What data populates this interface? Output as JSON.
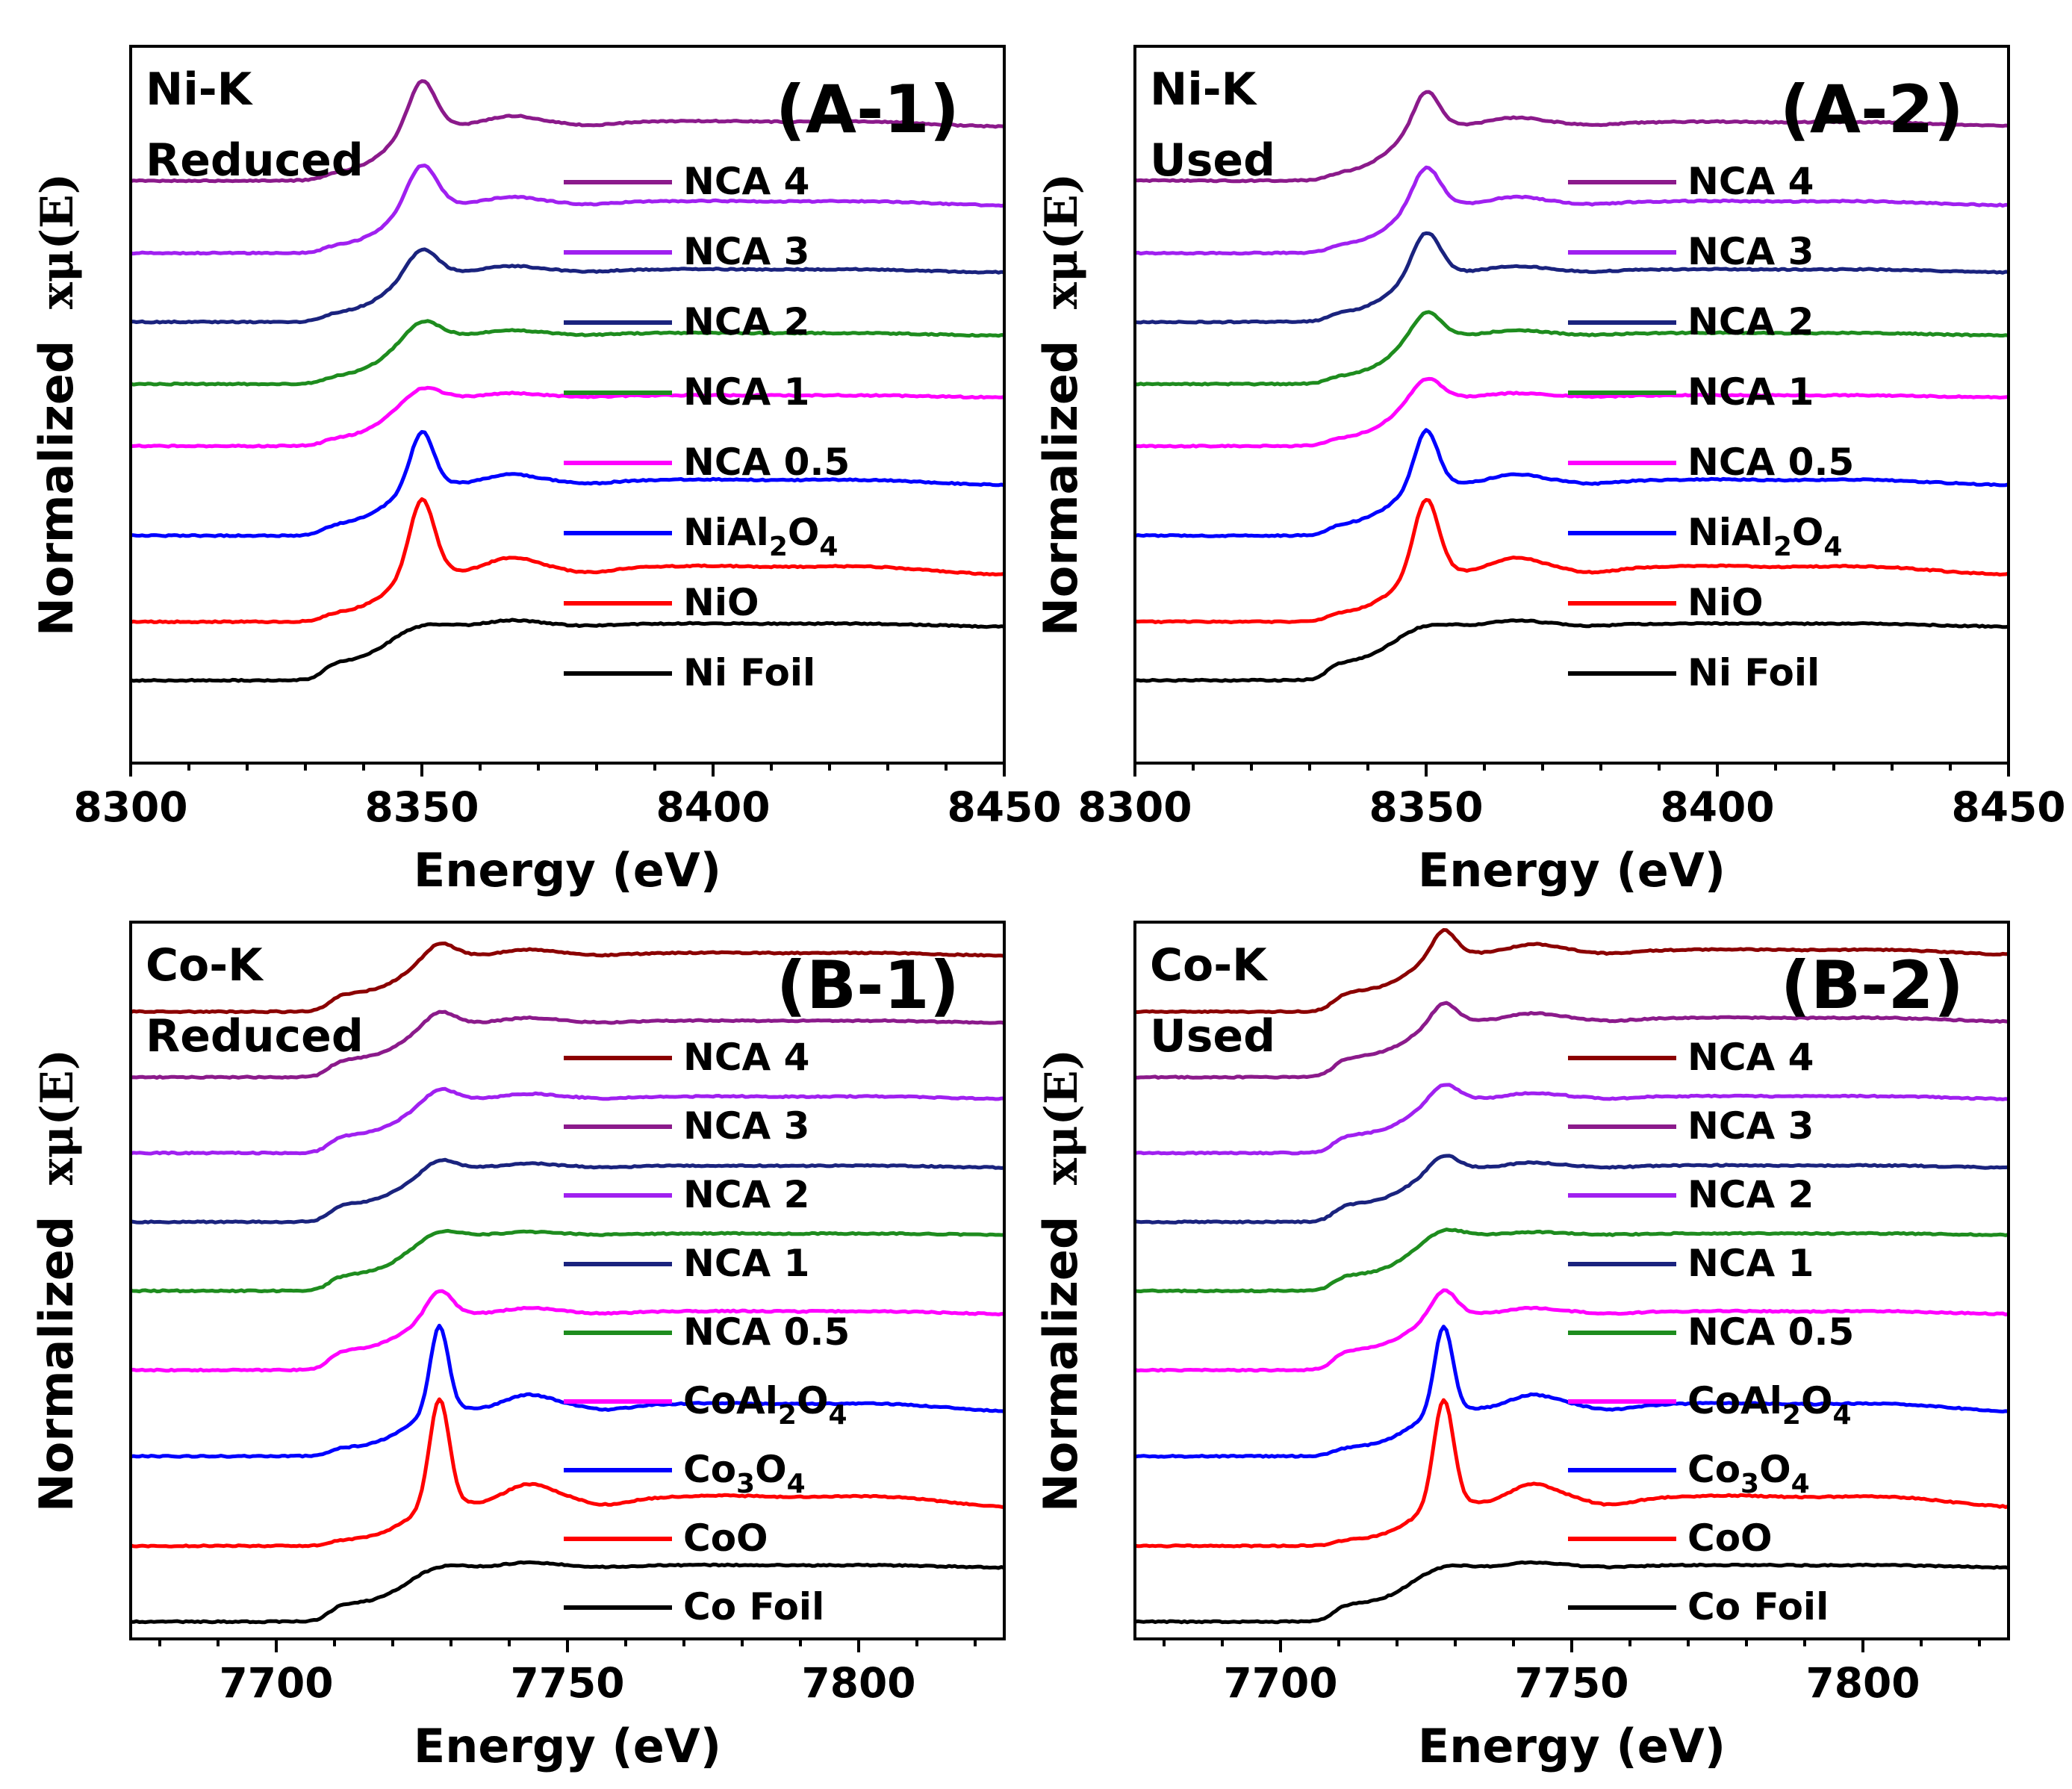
{
  "figure_caption": "",
  "chart_data": [
    {
      "id": "A1",
      "type": "line",
      "panel_tag": "(A-1)",
      "edge": "Ni-K",
      "condition": "Reduced",
      "xlabel": "Energy (eV)",
      "ylabel_word": "Normalized",
      "ylabel_symbol": "xμ(E)",
      "xlim": [
        8300,
        8450
      ],
      "xticks": [
        8300,
        8350,
        8400,
        8450
      ],
      "edge_energy": 8333,
      "white_line": 8350,
      "series": [
        {
          "name": "NCA 4",
          "color": "#8b1a8b",
          "offset": 7.45,
          "peak": 0.7,
          "width": 3.2,
          "edge_step": 0.72,
          "pre": 0.1,
          "osc": 0.1
        },
        {
          "name": "NCA 3",
          "color": "#a020f0",
          "offset": 6.4,
          "peak": 0.62,
          "width": 3.5,
          "edge_step": 0.62,
          "pre": 0.1,
          "osc": 0.08
        },
        {
          "name": "NCA 2",
          "color": "#1a237e",
          "offset": 5.4,
          "peak": 0.38,
          "width": 3.5,
          "edge_step": 0.62,
          "pre": 0.12,
          "osc": 0.06
        },
        {
          "name": "NCA 1",
          "color": "#1e8c1e",
          "offset": 4.5,
          "peak": 0.25,
          "width": 4.0,
          "edge_step": 0.62,
          "pre": 0.1,
          "osc": 0.05
        },
        {
          "name": "NCA 0.5",
          "color": "#ff00ff",
          "offset": 3.6,
          "peak": 0.18,
          "width": 4.0,
          "edge_step": 0.62,
          "pre": 0.1,
          "osc": 0.04
        },
        {
          "name": "NiAl2O4",
          "color": "#0000ff",
          "offset": 2.3,
          "peak": 0.8,
          "width": 2.8,
          "edge_step": 0.62,
          "pre": 0.15,
          "osc": 0.1
        },
        {
          "name": "NiO",
          "color": "#ff0000",
          "offset": 1.05,
          "peak": 1.1,
          "width": 3.0,
          "edge_step": 0.62,
          "pre": 0.12,
          "osc": 0.16
        },
        {
          "name": "Ni Foil",
          "color": "#000000",
          "offset": 0.2,
          "peak": 0.05,
          "width": 5.0,
          "edge_step": 0.55,
          "pre": 0.25,
          "osc": 0.06
        }
      ]
    },
    {
      "id": "A2",
      "type": "line",
      "panel_tag": "(A-2)",
      "edge": "Ni-K",
      "condition": "Used",
      "xlabel": "Energy (eV)",
      "ylabel_word": "Normalized",
      "ylabel_symbol": "xμ(E)",
      "xlim": [
        8300,
        8450
      ],
      "xticks": [
        8300,
        8350,
        8400,
        8450
      ],
      "edge_energy": 8333,
      "white_line": 8350,
      "series": [
        {
          "name": "NCA 4",
          "color": "#8b1a8b",
          "offset": 7.45,
          "peak": 0.55,
          "width": 3.0,
          "edge_step": 0.72,
          "pre": 0.1,
          "osc": 0.08
        },
        {
          "name": "NCA 3",
          "color": "#a020f0",
          "offset": 6.4,
          "peak": 0.58,
          "width": 3.3,
          "edge_step": 0.62,
          "pre": 0.1,
          "osc": 0.08
        },
        {
          "name": "NCA 2",
          "color": "#1a237e",
          "offset": 5.4,
          "peak": 0.62,
          "width": 3.3,
          "edge_step": 0.62,
          "pre": 0.12,
          "osc": 0.06
        },
        {
          "name": "NCA 1",
          "color": "#1e8c1e",
          "offset": 4.5,
          "peak": 0.38,
          "width": 3.5,
          "edge_step": 0.62,
          "pre": 0.1,
          "osc": 0.05
        },
        {
          "name": "NCA 0.5",
          "color": "#ff00ff",
          "offset": 3.6,
          "peak": 0.32,
          "width": 3.5,
          "edge_step": 0.62,
          "pre": 0.1,
          "osc": 0.04
        },
        {
          "name": "NiAl2O4",
          "color": "#0000ff",
          "offset": 2.3,
          "peak": 0.82,
          "width": 2.8,
          "edge_step": 0.62,
          "pre": 0.15,
          "osc": 0.1
        },
        {
          "name": "NiO",
          "color": "#ff0000",
          "offset": 1.05,
          "peak": 1.1,
          "width": 3.0,
          "edge_step": 0.62,
          "pre": 0.12,
          "osc": 0.16
        },
        {
          "name": "Ni Foil",
          "color": "#000000",
          "offset": 0.2,
          "peak": 0.05,
          "width": 5.0,
          "edge_step": 0.55,
          "pre": 0.25,
          "osc": 0.06
        }
      ]
    },
    {
      "id": "B1",
      "type": "line",
      "panel_tag": "(B-1)",
      "edge": "Co-K",
      "condition": "Reduced",
      "xlabel": "Energy (eV)",
      "ylabel_word": "Normalized",
      "ylabel_symbol": "xμ(E)",
      "xlim": [
        7675,
        7825
      ],
      "xticks": [
        7700,
        7750,
        7800
      ],
      "edge_energy": 7709,
      "white_line": 7728,
      "series": [
        {
          "name": "NCA 4",
          "color": "#8b0000",
          "offset": 8.1,
          "peak": 0.22,
          "width": 3.5,
          "edge_step": 0.58,
          "pre": 0.25,
          "osc": 0.06
        },
        {
          "name": "NCA 3",
          "color": "#8b1a8b",
          "offset": 7.15,
          "peak": 0.2,
          "width": 3.5,
          "edge_step": 0.55,
          "pre": 0.25,
          "osc": 0.05
        },
        {
          "name": "NCA 2",
          "color": "#a020f0",
          "offset": 6.05,
          "peak": 0.18,
          "width": 3.5,
          "edge_step": 0.55,
          "pre": 0.25,
          "osc": 0.05
        },
        {
          "name": "NCA 1",
          "color": "#1a237e",
          "offset": 5.05,
          "peak": 0.15,
          "width": 3.5,
          "edge_step": 0.55,
          "pre": 0.25,
          "osc": 0.04
        },
        {
          "name": "NCA 0.5",
          "color": "#1e8c1e",
          "offset": 4.05,
          "peak": 0.1,
          "width": 4.0,
          "edge_step": 0.6,
          "pre": 0.22,
          "osc": 0.03
        },
        {
          "name": "CoAl2O4",
          "color": "#ff00ff",
          "offset": 2.9,
          "peak": 0.38,
          "width": 3.0,
          "edge_step": 0.55,
          "pre": 0.28,
          "osc": 0.06
        },
        {
          "name": "Co3O4",
          "color": "#0000ff",
          "offset": 1.65,
          "peak": 1.25,
          "width": 2.2,
          "edge_step": 0.58,
          "pre": 0.12,
          "osc": 0.16
        },
        {
          "name": "CoO",
          "color": "#ff0000",
          "offset": 0.35,
          "peak": 1.55,
          "width": 2.4,
          "edge_step": 0.55,
          "pre": 0.08,
          "osc": 0.22
        },
        {
          "name": "Co Foil",
          "color": "#000000",
          "offset": -0.75,
          "peak": 0.05,
          "width": 5.0,
          "edge_step": 0.55,
          "pre": 0.25,
          "osc": 0.05
        }
      ]
    },
    {
      "id": "B2",
      "type": "line",
      "panel_tag": "(B-2)",
      "edge": "Co-K",
      "condition": "Used",
      "xlabel": "Energy (eV)",
      "ylabel_word": "Normalized",
      "ylabel_symbol": "xμ(E)",
      "xlim": [
        7675,
        7825
      ],
      "xticks": [
        7700,
        7750,
        7800
      ],
      "edge_energy": 7709,
      "white_line": 7728,
      "series": [
        {
          "name": "NCA 4",
          "color": "#8b0000",
          "offset": 8.1,
          "peak": 0.38,
          "width": 2.8,
          "edge_step": 0.58,
          "pre": 0.28,
          "osc": 0.1
        },
        {
          "name": "NCA 3",
          "color": "#8b1a8b",
          "offset": 7.15,
          "peak": 0.3,
          "width": 3.0,
          "edge_step": 0.55,
          "pre": 0.28,
          "osc": 0.08
        },
        {
          "name": "NCA 2",
          "color": "#a020f0",
          "offset": 6.05,
          "peak": 0.25,
          "width": 3.2,
          "edge_step": 0.55,
          "pre": 0.25,
          "osc": 0.06
        },
        {
          "name": "NCA 1",
          "color": "#1a237e",
          "offset": 5.05,
          "peak": 0.22,
          "width": 3.2,
          "edge_step": 0.55,
          "pre": 0.25,
          "osc": 0.05
        },
        {
          "name": "NCA 0.5",
          "color": "#1e8c1e",
          "offset": 4.05,
          "peak": 0.12,
          "width": 4.0,
          "edge_step": 0.6,
          "pre": 0.22,
          "osc": 0.03
        },
        {
          "name": "CoAl2O4",
          "color": "#ff00ff",
          "offset": 2.9,
          "peak": 0.38,
          "width": 3.0,
          "edge_step": 0.55,
          "pre": 0.28,
          "osc": 0.06
        },
        {
          "name": "Co3O4",
          "color": "#0000ff",
          "offset": 1.65,
          "peak": 1.25,
          "width": 2.2,
          "edge_step": 0.58,
          "pre": 0.12,
          "osc": 0.16
        },
        {
          "name": "CoO",
          "color": "#ff0000",
          "offset": 0.35,
          "peak": 1.55,
          "width": 2.4,
          "edge_step": 0.55,
          "pre": 0.08,
          "osc": 0.22
        },
        {
          "name": "Co Foil",
          "color": "#000000",
          "offset": -0.75,
          "peak": 0.05,
          "width": 5.0,
          "edge_step": 0.55,
          "pre": 0.25,
          "osc": 0.05
        }
      ]
    }
  ]
}
